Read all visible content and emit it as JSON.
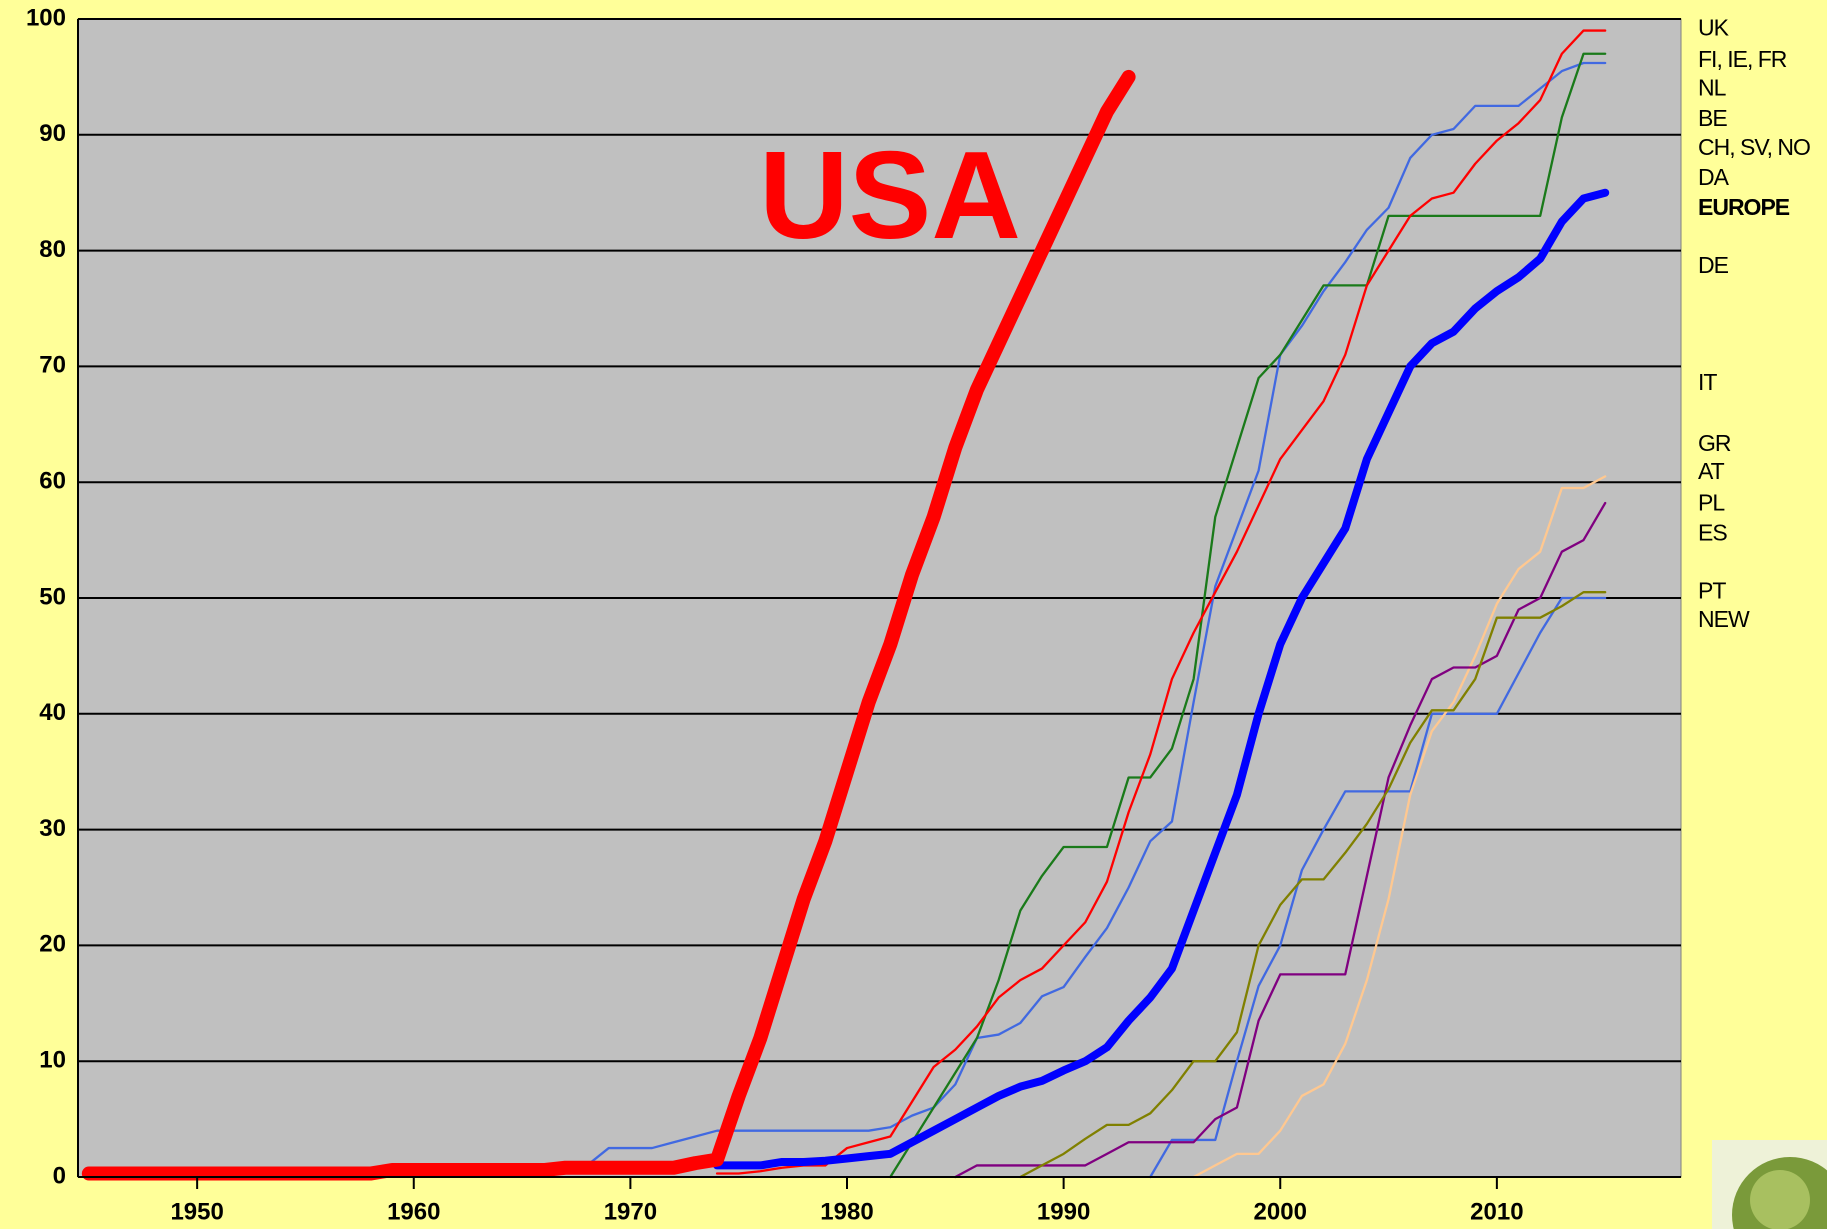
{
  "chart_data": {
    "type": "line",
    "annotation": "USA",
    "annotation_color": "#ff0000",
    "x": [
      1945,
      1946,
      1947,
      1948,
      1949,
      1950,
      1951,
      1952,
      1953,
      1954,
      1955,
      1956,
      1957,
      1958,
      1959,
      1960,
      1961,
      1962,
      1963,
      1964,
      1965,
      1966,
      1967,
      1968,
      1969,
      1970,
      1971,
      1972,
      1973,
      1974,
      1975,
      1976,
      1977,
      1978,
      1979,
      1980,
      1981,
      1982,
      1983,
      1984,
      1985,
      1986,
      1987,
      1988,
      1989,
      1990,
      1991,
      1992,
      1993,
      1994,
      1995,
      1996,
      1997,
      1998,
      1999,
      2000,
      2001,
      2002,
      2003,
      2004,
      2005,
      2006,
      2007,
      2008,
      2009,
      2010,
      2011,
      2012,
      2013,
      2014,
      2015
    ],
    "xlim": [
      1944.5,
      2018.5
    ],
    "xticks": [
      1950,
      1960,
      1970,
      1980,
      1990,
      2000,
      2010
    ],
    "ylim": [
      0,
      100
    ],
    "yticks": [
      0,
      10,
      20,
      30,
      40,
      50,
      60,
      70,
      80,
      90,
      100
    ],
    "grid": true,
    "series": [
      {
        "color": "#4169e1",
        "width": 2.3,
        "values": [
          null,
          null,
          null,
          null,
          null,
          null,
          null,
          null,
          null,
          null,
          null,
          null,
          null,
          null,
          null,
          null,
          null,
          null,
          null,
          null,
          null,
          null,
          null,
          null,
          null,
          null,
          null,
          null,
          null,
          null,
          null,
          null,
          null,
          null,
          null,
          null,
          null,
          null,
          null,
          null,
          null,
          null,
          null,
          null,
          null,
          null,
          null,
          null,
          null,
          0,
          3.2,
          3.2,
          3.2,
          10,
          16.5,
          20,
          26.5,
          30,
          33.3,
          33.3,
          33.3,
          33.3,
          40,
          40,
          40,
          40,
          43.5,
          47,
          50,
          50,
          50
        ]
      },
      {
        "color": "#ffc890",
        "width": 2.3,
        "values": [
          null,
          null,
          null,
          null,
          null,
          null,
          null,
          null,
          null,
          null,
          null,
          null,
          null,
          null,
          null,
          null,
          null,
          null,
          null,
          null,
          null,
          null,
          null,
          null,
          null,
          null,
          null,
          null,
          null,
          null,
          null,
          null,
          null,
          null,
          null,
          null,
          null,
          null,
          null,
          null,
          null,
          null,
          null,
          null,
          null,
          null,
          null,
          null,
          null,
          null,
          null,
          0,
          1,
          2,
          2,
          4,
          7,
          8,
          11.5,
          17,
          24,
          33,
          38.5,
          41,
          45,
          49.5,
          52.5,
          54,
          59.5,
          59.5,
          60.5
        ]
      },
      {
        "color": "#800080",
        "width": 2.3,
        "values": [
          null,
          null,
          null,
          null,
          null,
          null,
          null,
          null,
          null,
          null,
          null,
          null,
          null,
          null,
          null,
          null,
          null,
          null,
          null,
          null,
          null,
          null,
          null,
          null,
          null,
          null,
          null,
          null,
          null,
          null,
          null,
          null,
          null,
          null,
          null,
          null,
          null,
          null,
          null,
          null,
          0,
          1,
          1,
          1,
          1,
          1,
          1,
          2,
          3,
          3,
          3,
          3,
          5,
          6,
          13.5,
          17.5,
          17.5,
          17.5,
          17.5,
          26,
          34.5,
          39,
          43,
          44,
          44,
          45,
          49,
          50,
          54,
          55,
          58.2
        ]
      },
      {
        "color": "#808000",
        "width": 2.3,
        "values": [
          null,
          null,
          null,
          null,
          null,
          null,
          null,
          null,
          null,
          null,
          null,
          null,
          null,
          null,
          null,
          null,
          null,
          null,
          null,
          null,
          null,
          null,
          null,
          null,
          null,
          null,
          null,
          null,
          null,
          null,
          null,
          null,
          null,
          null,
          null,
          null,
          null,
          null,
          null,
          null,
          null,
          null,
          null,
          0,
          1,
          2,
          3.3,
          4.5,
          4.5,
          5.5,
          7.5,
          10,
          10,
          12.5,
          20,
          23.5,
          25.7,
          25.7,
          28,
          30.5,
          33.5,
          37.5,
          40.3,
          40.3,
          43,
          48.3,
          48.3,
          48.3,
          49.3,
          50.5,
          50.5
        ]
      },
      {
        "color": "#4169e1",
        "width": 2.3,
        "values": [
          null,
          null,
          null,
          null,
          null,
          null,
          null,
          null,
          null,
          null,
          null,
          null,
          null,
          null,
          null,
          null,
          null,
          null,
          null,
          null,
          null,
          null,
          0.5,
          1,
          2.5,
          2.5,
          2.5,
          3,
          3.5,
          4,
          4,
          4,
          4,
          4,
          4,
          4,
          4,
          4.3,
          5.3,
          6,
          8,
          12,
          12.3,
          13.3,
          15.6,
          16.4,
          19,
          21.5,
          25,
          29,
          30.7,
          41,
          51,
          56,
          61,
          71,
          73.5,
          76.5,
          79,
          81.8,
          83.7,
          88,
          90,
          90.5,
          92.5,
          92.5,
          92.5,
          94,
          95.5,
          96.2,
          96.2
        ]
      },
      {
        "color": "#1a7a1a",
        "width": 2.3,
        "values": [
          null,
          null,
          null,
          null,
          null,
          null,
          null,
          null,
          null,
          null,
          null,
          null,
          null,
          null,
          null,
          null,
          null,
          null,
          null,
          null,
          null,
          null,
          null,
          null,
          null,
          null,
          null,
          null,
          null,
          null,
          null,
          null,
          null,
          null,
          null,
          null,
          null,
          0,
          3,
          6,
          9,
          12,
          17,
          23,
          26,
          28.5,
          28.5,
          28.5,
          34.5,
          34.5,
          37,
          43,
          57,
          63,
          69,
          71,
          74,
          77,
          77,
          77,
          83,
          83,
          83,
          83,
          83,
          83,
          83,
          83,
          91.5,
          97,
          97
        ]
      },
      {
        "color": "#ff0000",
        "width": 2.3,
        "values": [
          null,
          null,
          null,
          null,
          null,
          null,
          null,
          null,
          null,
          null,
          null,
          null,
          null,
          null,
          null,
          null,
          null,
          null,
          null,
          null,
          null,
          null,
          null,
          null,
          null,
          null,
          null,
          null,
          null,
          0.3,
          0.3,
          0.5,
          0.8,
          1,
          1,
          2.5,
          3,
          3.5,
          6.5,
          9.5,
          11,
          13,
          15.5,
          17,
          18,
          20,
          22,
          25.5,
          31.5,
          36.5,
          43,
          47,
          50.5,
          54,
          58,
          62,
          64.5,
          67,
          71,
          77,
          80,
          83,
          84.5,
          85,
          87.5,
          89.5,
          91,
          93,
          97,
          99,
          99
        ]
      },
      {
        "color": "#0000ff",
        "width": 8,
        "values": [
          null,
          null,
          null,
          null,
          null,
          null,
          null,
          null,
          null,
          null,
          null,
          null,
          null,
          null,
          null,
          null,
          null,
          null,
          null,
          null,
          null,
          null,
          null,
          null,
          null,
          null,
          null,
          null,
          null,
          1,
          1,
          1,
          1.3,
          1.3,
          1.4,
          1.6,
          1.8,
          2,
          3,
          4,
          5,
          6,
          7,
          7.8,
          8.3,
          9.2,
          10,
          11.2,
          13.5,
          15.5,
          18,
          23,
          28,
          33,
          40,
          46,
          50,
          53,
          56,
          62,
          66,
          70,
          72,
          73,
          75,
          76.5,
          77.7,
          79.3,
          82.5,
          84.5,
          85
        ]
      },
      {
        "color": "#ff0000",
        "width": 14,
        "values": [
          0.3,
          0.3,
          0.3,
          0.3,
          0.3,
          0.3,
          0.3,
          0.3,
          0.3,
          0.3,
          0.3,
          0.3,
          0.3,
          0.3,
          0.6,
          0.6,
          0.6,
          0.6,
          0.6,
          0.6,
          0.6,
          0.6,
          0.8,
          0.8,
          0.8,
          0.8,
          0.8,
          0.8,
          1.2,
          1.5,
          7,
          12,
          18,
          24,
          29,
          35,
          41,
          46,
          52,
          57,
          63,
          68,
          72,
          76,
          80,
          84,
          88,
          92,
          95,
          null,
          null,
          null,
          null,
          null,
          null,
          null,
          null,
          null,
          null,
          null,
          null,
          null,
          null,
          null,
          null,
          null,
          null,
          null,
          null,
          null,
          null
        ]
      }
    ],
    "right_labels": [
      {
        "label": "UK",
        "value": 99.1
      },
      {
        "label": "FI, IE, FR",
        "value": 96.4
      },
      {
        "label": "NL",
        "value": 93.9
      },
      {
        "label": "BE",
        "value": 91.3
      },
      {
        "label": "CH, SV, NO",
        "value": 88.8
      },
      {
        "label": "DA",
        "value": 86.2
      },
      {
        "label": "EUROPE",
        "value": 83.6,
        "bold": true
      },
      {
        "label": "DE",
        "value": 78.6
      },
      {
        "label": "IT",
        "value": 68.5
      },
      {
        "label": "GR",
        "value": 63.2
      },
      {
        "label": "AT",
        "value": 60.8
      },
      {
        "label": "PL",
        "value": 58.1
      },
      {
        "label": "ES",
        "value": 55.5
      },
      {
        "label": "PT",
        "value": 50.5
      },
      {
        "label": "NEW",
        "value": 48.0
      }
    ]
  }
}
